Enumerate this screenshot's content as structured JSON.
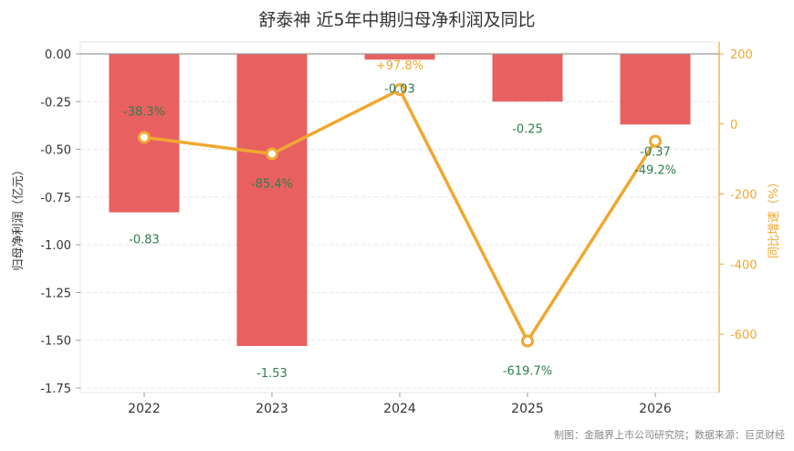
{
  "chart_data": {
    "type": "bar",
    "title": "舒泰神 近5年中期归母净利润及同比",
    "categories": [
      "2022",
      "2023",
      "2024",
      "2025",
      "2026"
    ],
    "ylabel": "归母净利润（亿元）",
    "ylabel2": "同比增速（%）",
    "ylim": [
      -1.75,
      0.0
    ],
    "y2lim": [
      -770,
      225
    ],
    "yticks": [
      "0.00",
      "-0.25",
      "-0.50",
      "-0.75",
      "-1.00",
      "-1.25",
      "-1.50",
      "-1.75"
    ],
    "y2ticks": [
      "200",
      "0",
      "-200",
      "-400",
      "-600"
    ],
    "grid": true,
    "series": [
      {
        "name": "归母净利润",
        "type": "bar",
        "axis": "left",
        "values": [
          -0.83,
          -1.53,
          -0.03,
          -0.25,
          -0.37
        ],
        "labels": [
          "-0.83",
          "-1.53",
          "-0.03",
          "-0.25",
          "-0.37"
        ]
      },
      {
        "name": "同比增速",
        "type": "line",
        "axis": "right",
        "values": [
          -38.3,
          -85.4,
          97.8,
          -619.7,
          -49.2
        ],
        "labels": [
          "-38.3%",
          "-85.4%",
          "+97.8%",
          "-619.7%",
          "-49.2%"
        ]
      }
    ],
    "source": "制图：金融界上市公司研究院；数据来源：巨灵财经"
  },
  "colors": {
    "bar": "#e86060",
    "line": "#f0a830",
    "negative_label": "#2e7d4f",
    "positive_label": "#f0a830"
  }
}
